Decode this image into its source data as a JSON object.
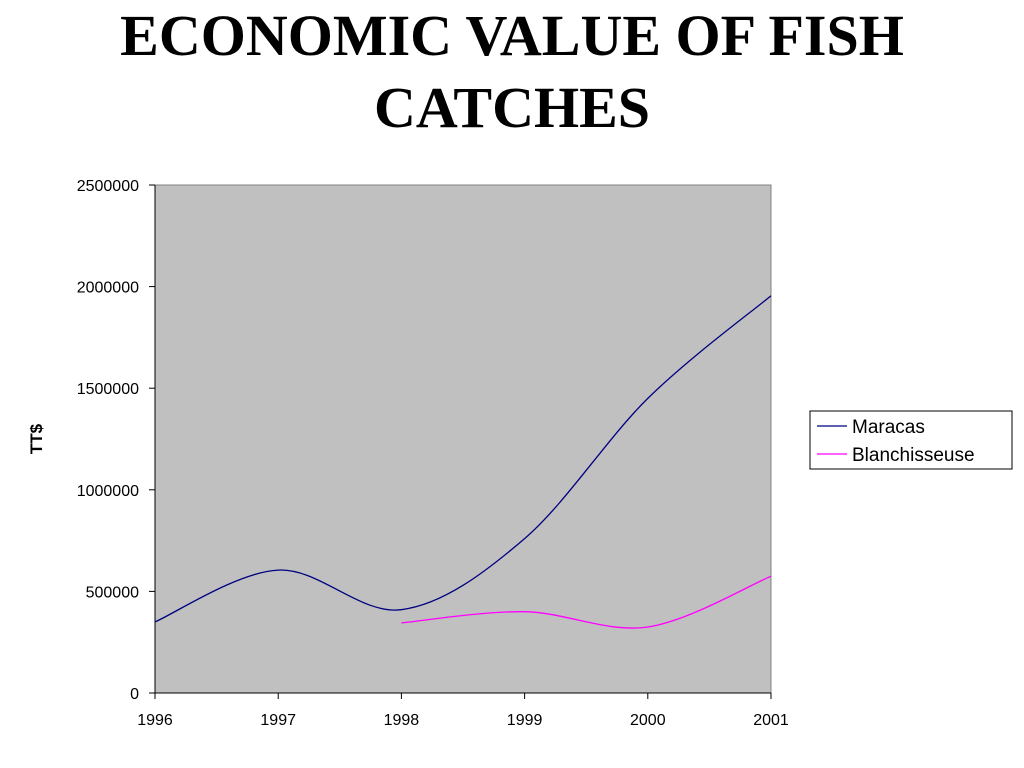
{
  "chart_data": {
    "type": "line",
    "title_lines": [
      "ECONOMIC VALUE OF FISH",
      "CATCHES"
    ],
    "xlabel": "",
    "ylabel": "TT$",
    "x": [
      1996,
      1997,
      1998,
      1999,
      2000,
      2001
    ],
    "xtick_labels": [
      "1996",
      "1997",
      "1998",
      "1999",
      "2000",
      "2001"
    ],
    "yticks": [
      0,
      500000,
      1000000,
      1500000,
      2000000,
      2500000
    ],
    "ytick_labels": [
      "0",
      "500000",
      "1000000",
      "1500000",
      "2000000",
      "2500000"
    ],
    "ylim": [
      0,
      2500000
    ],
    "xlim": [
      1996,
      2001
    ],
    "grid": false,
    "plot_background": "#c0c0c0",
    "smooth": true,
    "legend_position": "right",
    "series": [
      {
        "name": "Maracas",
        "color": "#000080",
        "x": [
          1996,
          1997,
          1998,
          1999,
          2000,
          2001
        ],
        "values": [
          350000,
          605000,
          410000,
          760000,
          1450000,
          1955000
        ]
      },
      {
        "name": "Blanchisseuse",
        "color": "#ff00ff",
        "x": [
          1998,
          1999,
          2000,
          2001
        ],
        "values": [
          345000,
          400000,
          325000,
          575000
        ]
      }
    ]
  }
}
